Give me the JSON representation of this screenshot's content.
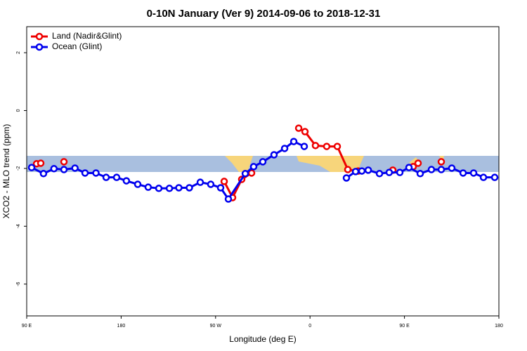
{
  "chart_data": {
    "type": "line",
    "title": "0-10N January (Ver 9)   2014-09-06 to 2018-12-31",
    "x_label": "Longitude (deg E)",
    "y_label": "XCO2 - MLO trend (ppm)",
    "xlim": [
      90,
      540
    ],
    "xticks": [
      {
        "value": 90,
        "label": "90 E"
      },
      180,
      {
        "value": 270,
        "label": "90 W"
      },
      {
        "value": 360,
        "label": "0"
      },
      {
        "value": 450,
        "label": "90 E"
      },
      {
        "value": 540,
        "label": "180"
      }
    ],
    "ylim": [
      -7.1,
      2.9
    ],
    "yticks": [
      2,
      0,
      -2,
      -4,
      -6
    ],
    "legend": "top-left",
    "series": [
      {
        "name": "Land (Nadir&Glint)",
        "color": "#ee0000",
        "x": [
          99.4,
          103.4,
          114,
          125.5,
          200,
          278.2,
          286.2,
          294.9,
          304.3,
          327,
          349.2,
          355.2,
          365.2,
          375.9,
          386,
          396,
          406,
          422,
          438.9,
          448,
          458.3,
          463,
          474,
          485.1
        ],
        "values": [
          -1.84,
          -1.82,
          null,
          -1.77,
          null,
          -2.45,
          -3.01,
          -2.38,
          -2.16,
          null,
          -0.61,
          -0.73,
          -1.21,
          -1.24,
          -1.24,
          -2.04,
          -2.09,
          null,
          -2.06,
          null,
          -1.94,
          -1.82,
          null,
          -1.77
        ]
      },
      {
        "name": "Ocean (Glint)",
        "color": "#0000ee",
        "x": [
          94.7,
          106,
          116,
          125.5,
          136,
          145.6,
          156,
          165.7,
          175.7,
          185,
          195.8,
          205.8,
          215.9,
          226,
          235,
          245,
          255.4,
          265.4,
          274.8,
          282.2,
          298.3,
          306.3,
          315,
          325.7,
          335.8,
          344.5,
          354.5,
          374,
          394.7,
          403.4,
          409.4,
          415.5,
          426.2,
          435.5,
          445.6,
          454.3,
          465,
          475.7,
          485.1,
          495.1,
          505.9,
          515.9,
          525.3,
          536
        ],
        "values": [
          -1.97,
          -2.18,
          -2.01,
          -2.04,
          -1.99,
          -2.16,
          -2.16,
          -2.31,
          -2.31,
          -2.43,
          -2.55,
          -2.65,
          -2.69,
          -2.69,
          -2.67,
          -2.67,
          -2.48,
          -2.55,
          -2.67,
          -3.06,
          -2.18,
          -1.94,
          -1.77,
          -1.53,
          -1.31,
          -1.07,
          -1.24,
          null,
          -2.33,
          -2.11,
          -2.09,
          -2.06,
          -2.18,
          -2.14,
          -2.14,
          -1.97,
          -2.18,
          -2.04,
          -2.04,
          -1.99,
          -2.16,
          -2.16,
          -2.31,
          -2.31
        ]
      }
    ]
  }
}
